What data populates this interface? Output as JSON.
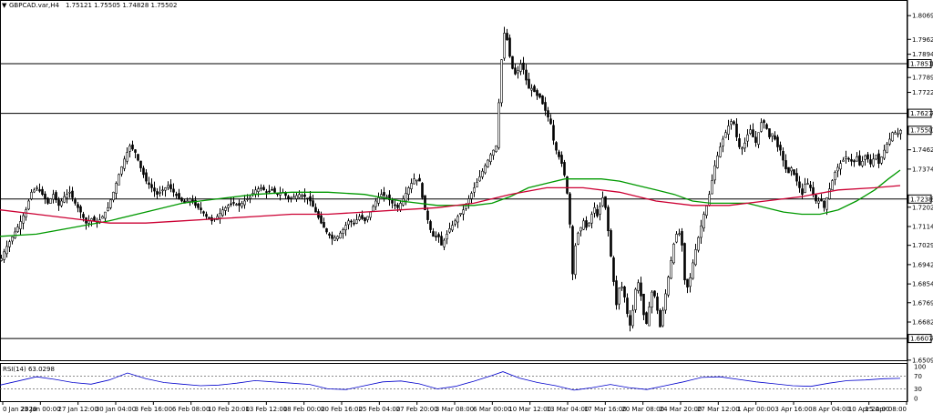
{
  "header": {
    "menu_arrow": "▼",
    "symbol": "GBPCAD.var,H4",
    "ohlc": "1.75121 1.75505 1.74828 1.75502"
  },
  "chart_data": {
    "type": "candlestick",
    "symbol": "GBPCAD.var,H4",
    "title": "GBPCAD.var,H4 1.75121 1.75505 1.74828 1.75502",
    "ylim": [
      1.6509,
      1.8132
    ],
    "y_ticks": [
      "1.80695",
      "1.79620",
      "1.78945",
      "1.78519",
      "1.77895",
      "1.77220",
      "1.76271",
      "1.75502",
      "1.74620",
      "1.73745",
      "1.72389",
      "1.72020",
      "1.71145",
      "1.70295",
      "1.69420",
      "1.68545",
      "1.67695",
      "1.66820",
      "1.66075",
      "1.65095"
    ],
    "price_labels": [
      "1.78519",
      "1.76271",
      "1.75502",
      "1.72389",
      "1.66075"
    ],
    "horizontal_lines": [
      1.78519,
      1.76271,
      1.72389,
      1.66075
    ],
    "x_tick_labels": [
      "0 Jan 2020",
      "23 Jan 00:00",
      "27 Jan 12:00",
      "30 Jan 04:00",
      "3 Feb 16:00",
      "6 Feb 08:00",
      "10 Feb 20:00",
      "13 Feb 12:00",
      "18 Feb 00:00",
      "20 Feb 16:00",
      "25 Feb 04:00",
      "27 Feb 20:00",
      "3 Mar 08:00",
      "6 Mar 00:00",
      "10 Mar 12:00",
      "13 Mar 04:00",
      "17 Mar 16:00",
      "20 Mar 08:00",
      "24 Mar 20:00",
      "27 Mar 12:00",
      "1 Apr 00:00",
      "3 Apr 16:00",
      "8 Apr 04:00",
      "10 Apr 20:00",
      "15 Apr 08:00"
    ],
    "price_path": [
      [
        0,
        1.696
      ],
      [
        5,
        1.701
      ],
      [
        12,
        1.706
      ],
      [
        20,
        1.712
      ],
      [
        28,
        1.719
      ],
      [
        34,
        1.727
      ],
      [
        40,
        1.729
      ],
      [
        46,
        1.726
      ],
      [
        52,
        1.722
      ],
      [
        58,
        1.726
      ],
      [
        64,
        1.721
      ],
      [
        70,
        1.725
      ],
      [
        76,
        1.727
      ],
      [
        82,
        1.722
      ],
      [
        88,
        1.718
      ],
      [
        94,
        1.713
      ],
      [
        100,
        1.715
      ],
      [
        106,
        1.713
      ],
      [
        112,
        1.716
      ],
      [
        118,
        1.72
      ],
      [
        124,
        1.727
      ],
      [
        130,
        1.735
      ],
      [
        136,
        1.742
      ],
      [
        142,
        1.748
      ],
      [
        148,
        1.745
      ],
      [
        154,
        1.738
      ],
      [
        160,
        1.732
      ],
      [
        166,
        1.729
      ],
      [
        172,
        1.726
      ],
      [
        178,
        1.728
      ],
      [
        184,
        1.73
      ],
      [
        190,
        1.727
      ],
      [
        196,
        1.724
      ],
      [
        202,
        1.722
      ],
      [
        208,
        1.724
      ],
      [
        214,
        1.721
      ],
      [
        220,
        1.719
      ],
      [
        226,
        1.716
      ],
      [
        232,
        1.714
      ],
      [
        238,
        1.716
      ],
      [
        244,
        1.719
      ],
      [
        250,
        1.721
      ],
      [
        256,
        1.722
      ],
      [
        262,
        1.721
      ],
      [
        268,
        1.723
      ],
      [
        274,
        1.725
      ],
      [
        280,
        1.728
      ],
      [
        286,
        1.729
      ],
      [
        292,
        1.727
      ],
      [
        298,
        1.728
      ],
      [
        304,
        1.726
      ],
      [
        310,
        1.727
      ],
      [
        316,
        1.724
      ],
      [
        322,
        1.725
      ],
      [
        328,
        1.726
      ],
      [
        334,
        1.725
      ],
      [
        340,
        1.723
      ],
      [
        346,
        1.718
      ],
      [
        352,
        1.713
      ],
      [
        358,
        1.709
      ],
      [
        364,
        1.706
      ],
      [
        370,
        1.707
      ],
      [
        376,
        1.71
      ],
      [
        382,
        1.714
      ],
      [
        388,
        1.713
      ],
      [
        394,
        1.716
      ],
      [
        400,
        1.714
      ],
      [
        406,
        1.718
      ],
      [
        412,
        1.723
      ],
      [
        418,
        1.726
      ],
      [
        424,
        1.725
      ],
      [
        430,
        1.722
      ],
      [
        436,
        1.72
      ],
      [
        442,
        1.724
      ],
      [
        448,
        1.729
      ],
      [
        454,
        1.733
      ],
      [
        460,
        1.732
      ],
      [
        464,
        1.722
      ],
      [
        468,
        1.716
      ],
      [
        472,
        1.71
      ],
      [
        476,
        1.706
      ],
      [
        480,
        1.708
      ],
      [
        484,
        1.703
      ],
      [
        488,
        1.706
      ],
      [
        492,
        1.71
      ],
      [
        496,
        1.712
      ],
      [
        502,
        1.716
      ],
      [
        508,
        1.719
      ],
      [
        514,
        1.724
      ],
      [
        520,
        1.729
      ],
      [
        526,
        1.734
      ],
      [
        532,
        1.739
      ],
      [
        538,
        1.744
      ],
      [
        544,
        1.748
      ],
      [
        548,
        1.774
      ],
      [
        552,
        1.8
      ],
      [
        556,
        1.796
      ],
      [
        560,
        1.786
      ],
      [
        564,
        1.78
      ],
      [
        568,
        1.782
      ],
      [
        572,
        1.786
      ],
      [
        576,
        1.779
      ],
      [
        580,
        1.774
      ],
      [
        584,
        1.774
      ],
      [
        588,
        1.771
      ],
      [
        592,
        1.77
      ],
      [
        596,
        1.766
      ],
      [
        600,
        1.762
      ],
      [
        604,
        1.758
      ],
      [
        608,
        1.748
      ],
      [
        612,
        1.744
      ],
      [
        616,
        1.74
      ],
      [
        620,
        1.733
      ],
      [
        624,
        1.72
      ],
      [
        628,
        1.69
      ],
      [
        632,
        1.707
      ],
      [
        636,
        1.71
      ],
      [
        640,
        1.714
      ],
      [
        644,
        1.71
      ],
      [
        648,
        1.716
      ],
      [
        652,
        1.72
      ],
      [
        656,
        1.715
      ],
      [
        660,
        1.726
      ],
      [
        664,
        1.72
      ],
      [
        668,
        1.706
      ],
      [
        672,
        1.69
      ],
      [
        676,
        1.676
      ],
      [
        680,
        1.686
      ],
      [
        684,
        1.682
      ],
      [
        688,
        1.672
      ],
      [
        692,
        1.665
      ],
      [
        696,
        1.682
      ],
      [
        700,
        1.686
      ],
      [
        704,
        1.678
      ],
      [
        708,
        1.665
      ],
      [
        712,
        1.675
      ],
      [
        716,
        1.684
      ],
      [
        720,
        1.676
      ],
      [
        724,
        1.666
      ],
      [
        728,
        1.676
      ],
      [
        732,
        1.686
      ],
      [
        736,
        1.696
      ],
      [
        740,
        1.706
      ],
      [
        744,
        1.71
      ],
      [
        748,
        1.703
      ],
      [
        752,
        1.682
      ],
      [
        756,
        1.686
      ],
      [
        760,
        1.695
      ],
      [
        764,
        1.703
      ],
      [
        768,
        1.71
      ],
      [
        772,
        1.717
      ],
      [
        776,
        1.722
      ],
      [
        780,
        1.73
      ],
      [
        784,
        1.739
      ],
      [
        788,
        1.745
      ],
      [
        792,
        1.75
      ],
      [
        796,
        1.754
      ],
      [
        800,
        1.758
      ],
      [
        804,
        1.76
      ],
      [
        808,
        1.752
      ],
      [
        812,
        1.746
      ],
      [
        816,
        1.748
      ],
      [
        820,
        1.753
      ],
      [
        824,
        1.756
      ],
      [
        828,
        1.748
      ],
      [
        832,
        1.754
      ],
      [
        836,
        1.76
      ],
      [
        840,
        1.757
      ],
      [
        844,
        1.752
      ],
      [
        848,
        1.754
      ],
      [
        852,
        1.748
      ],
      [
        856,
        1.746
      ],
      [
        860,
        1.74
      ],
      [
        864,
        1.735
      ],
      [
        868,
        1.738
      ],
      [
        872,
        1.734
      ],
      [
        876,
        1.73
      ],
      [
        880,
        1.726
      ],
      [
        884,
        1.732
      ],
      [
        888,
        1.73
      ],
      [
        892,
        1.726
      ],
      [
        896,
        1.722
      ],
      [
        900,
        1.724
      ],
      [
        904,
        1.72
      ],
      [
        908,
        1.726
      ],
      [
        912,
        1.731
      ],
      [
        916,
        1.736
      ],
      [
        920,
        1.739
      ],
      [
        924,
        1.741
      ],
      [
        928,
        1.743
      ],
      [
        932,
        1.742
      ],
      [
        936,
        1.74
      ],
      [
        940,
        1.743
      ],
      [
        944,
        1.738
      ],
      [
        948,
        1.744
      ],
      [
        952,
        1.742
      ],
      [
        956,
        1.739
      ],
      [
        960,
        1.745
      ],
      [
        964,
        1.74
      ],
      [
        968,
        1.744
      ],
      [
        972,
        1.748
      ],
      [
        976,
        1.751
      ],
      [
        980,
        1.755
      ],
      [
        984,
        1.753
      ],
      [
        988,
        1.755
      ]
    ],
    "series": [
      {
        "name": "",
        "color": "#009900",
        "points": [
          [
            0,
            1.707
          ],
          [
            40,
            1.708
          ],
          [
            80,
            1.711
          ],
          [
            120,
            1.714
          ],
          [
            160,
            1.718
          ],
          [
            200,
            1.722
          ],
          [
            240,
            1.724
          ],
          [
            280,
            1.726
          ],
          [
            320,
            1.727
          ],
          [
            360,
            1.727
          ],
          [
            400,
            1.726
          ],
          [
            440,
            1.723
          ],
          [
            480,
            1.721
          ],
          [
            520,
            1.721
          ],
          [
            540,
            1.722
          ],
          [
            560,
            1.725
          ],
          [
            580,
            1.729
          ],
          [
            600,
            1.731
          ],
          [
            620,
            1.733
          ],
          [
            640,
            1.733
          ],
          [
            660,
            1.733
          ],
          [
            680,
            1.732
          ],
          [
            700,
            1.73
          ],
          [
            720,
            1.728
          ],
          [
            740,
            1.726
          ],
          [
            760,
            1.723
          ],
          [
            780,
            1.722
          ],
          [
            800,
            1.722
          ],
          [
            820,
            1.722
          ],
          [
            840,
            1.72
          ],
          [
            860,
            1.718
          ],
          [
            880,
            1.717
          ],
          [
            900,
            1.717
          ],
          [
            920,
            1.719
          ],
          [
            940,
            1.723
          ],
          [
            960,
            1.728
          ],
          [
            975,
            1.733
          ],
          [
            988,
            1.737
          ]
        ]
      },
      {
        "name": "",
        "color": "#cc0033",
        "points": [
          [
            0,
            1.719
          ],
          [
            40,
            1.717
          ],
          [
            80,
            1.715
          ],
          [
            120,
            1.713
          ],
          [
            160,
            1.713
          ],
          [
            200,
            1.714
          ],
          [
            240,
            1.715
          ],
          [
            280,
            1.716
          ],
          [
            320,
            1.717
          ],
          [
            360,
            1.717
          ],
          [
            400,
            1.718
          ],
          [
            440,
            1.719
          ],
          [
            480,
            1.72
          ],
          [
            520,
            1.722
          ],
          [
            560,
            1.726
          ],
          [
            600,
            1.729
          ],
          [
            640,
            1.729
          ],
          [
            680,
            1.727
          ],
          [
            720,
            1.723
          ],
          [
            760,
            1.721
          ],
          [
            800,
            1.721
          ],
          [
            840,
            1.723
          ],
          [
            880,
            1.725
          ],
          [
            920,
            1.728
          ],
          [
            960,
            1.729
          ],
          [
            988,
            1.73
          ]
        ]
      }
    ],
    "rsi": {
      "label": "RSI(14) 63.0298",
      "ylim": [
        0,
        100
      ],
      "levels": [
        30,
        70
      ],
      "tick_labels": [
        "100",
        "70",
        "30",
        "0"
      ],
      "color": "#0000cc",
      "points": [
        [
          0,
          42
        ],
        [
          20,
          55
        ],
        [
          40,
          68
        ],
        [
          60,
          60
        ],
        [
          80,
          50
        ],
        [
          100,
          45
        ],
        [
          120,
          58
        ],
        [
          140,
          80
        ],
        [
          160,
          62
        ],
        [
          180,
          50
        ],
        [
          200,
          45
        ],
        [
          220,
          40
        ],
        [
          240,
          42
        ],
        [
          260,
          48
        ],
        [
          280,
          56
        ],
        [
          300,
          52
        ],
        [
          320,
          48
        ],
        [
          340,
          44
        ],
        [
          360,
          30
        ],
        [
          380,
          28
        ],
        [
          400,
          40
        ],
        [
          420,
          52
        ],
        [
          440,
          55
        ],
        [
          460,
          46
        ],
        [
          480,
          30
        ],
        [
          500,
          38
        ],
        [
          520,
          54
        ],
        [
          540,
          72
        ],
        [
          552,
          84
        ],
        [
          570,
          64
        ],
        [
          590,
          50
        ],
        [
          610,
          40
        ],
        [
          630,
          26
        ],
        [
          650,
          34
        ],
        [
          670,
          44
        ],
        [
          690,
          34
        ],
        [
          710,
          28
        ],
        [
          730,
          40
        ],
        [
          750,
          52
        ],
        [
          770,
          66
        ],
        [
          790,
          68
        ],
        [
          810,
          60
        ],
        [
          830,
          52
        ],
        [
          850,
          46
        ],
        [
          870,
          40
        ],
        [
          890,
          38
        ],
        [
          910,
          48
        ],
        [
          930,
          56
        ],
        [
          950,
          58
        ],
        [
          970,
          62
        ],
        [
          988,
          63
        ]
      ]
    }
  }
}
